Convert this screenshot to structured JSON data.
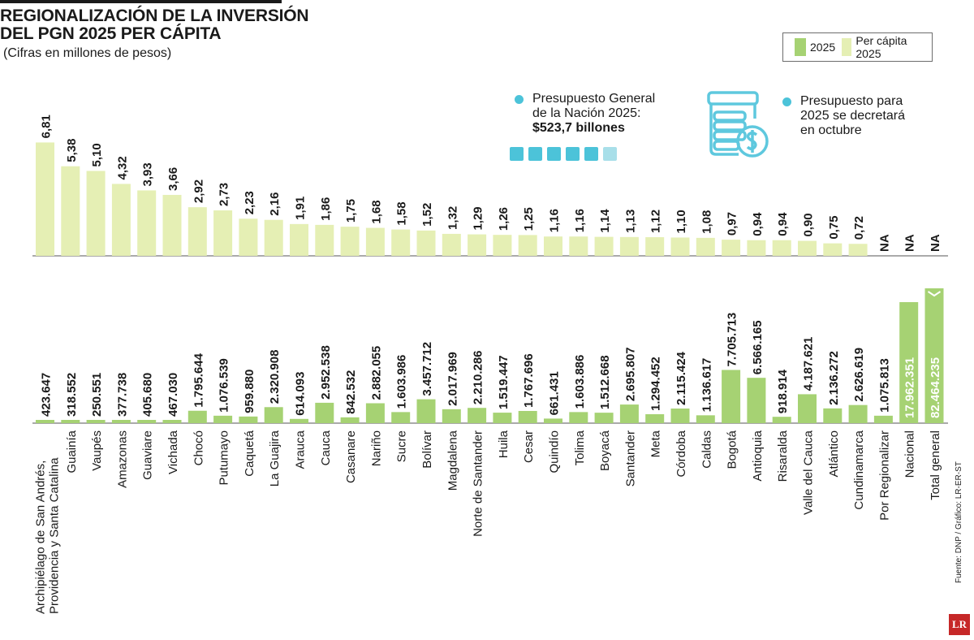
{
  "header": {
    "title_line1": "REGIONALIZACIÓN DE LA INVERSIÓN",
    "title_line2": "DEL PGN 2025 PER CÁPITA",
    "subtitle": "(Cifras en millones de pesos)"
  },
  "legend": {
    "series1": "2025",
    "series2": "Per cápita 2025"
  },
  "info": {
    "left_line1": "Presupuesto General",
    "left_line2": "de la Nación 2025:",
    "left_value": "$523,7 billones",
    "right_line1": "Presupuesto para",
    "right_line2": "2025 se decretará",
    "right_line3": "en octubre"
  },
  "footer": {
    "source": "Fuente: DNP / Gráfico: LR-ER-ST",
    "logo": "LR"
  },
  "colors": {
    "percapita": "#e5efb4",
    "total": "#a6d273",
    "accent": "#4cc3d9",
    "accent_light": "#a8dfe9"
  },
  "chart_data": {
    "type": "bar",
    "title": "REGIONALIZACIÓN DE LA INVERSIÓN DEL PGN 2025 PER CÁPITA",
    "unit": "Cifras en millones de pesos",
    "categories": [
      "Archipiélago de San Andrés, Providencia y Santa Catalina",
      "Guainía",
      "Vaupés",
      "Amazonas",
      "Guaviare",
      "Vichada",
      "Chocó",
      "Putumayo",
      "Caquetá",
      "La Guajira",
      "Arauca",
      "Cauca",
      "Casanare",
      "Nariño",
      "Sucre",
      "Bolívar",
      "Magdalena",
      "Norte de Santander",
      "Huila",
      "Cesar",
      "Quindío",
      "Tolima",
      "Boyacá",
      "Santander",
      "Meta",
      "Córdoba",
      "Caldas",
      "Bogotá",
      "Antioquia",
      "Risaralda",
      "Valle del Cauca",
      "Atlántico",
      "Cundinamarca",
      "Por Regionalizar",
      "Nacional",
      "Total general"
    ],
    "series": [
      {
        "name": "Per cápita 2025",
        "values": [
          6.81,
          5.38,
          5.1,
          4.32,
          3.93,
          3.66,
          2.92,
          2.73,
          2.23,
          2.16,
          1.91,
          1.86,
          1.75,
          1.68,
          1.58,
          1.52,
          1.32,
          1.29,
          1.26,
          1.25,
          1.16,
          1.16,
          1.14,
          1.13,
          1.12,
          1.1,
          1.08,
          0.97,
          0.94,
          0.94,
          0.9,
          0.75,
          0.72,
          null,
          null,
          null
        ],
        "labels": [
          "6,81",
          "5,38",
          "5,10",
          "4,32",
          "3,93",
          "3,66",
          "2,92",
          "2,73",
          "2,23",
          "2,16",
          "1,91",
          "1,86",
          "1,75",
          "1,68",
          "1,58",
          "1,52",
          "1,32",
          "1,29",
          "1,26",
          "1,25",
          "1,16",
          "1,16",
          "1,14",
          "1,13",
          "1,12",
          "1,10",
          "1,08",
          "0,97",
          "0,94",
          "0,94",
          "0,90",
          "0,75",
          "0,72",
          "NA",
          "NA",
          "NA"
        ]
      },
      {
        "name": "2025",
        "values": [
          423647,
          318552,
          250551,
          377738,
          405680,
          467030,
          1795644,
          1076539,
          959880,
          2320908,
          614093,
          2952538,
          842532,
          2882055,
          1603986,
          3457712,
          2017969,
          2210286,
          1519447,
          1767696,
          661431,
          1603886,
          1512668,
          2695807,
          1294452,
          2115424,
          1136617,
          7705713,
          6566165,
          918914,
          4187621,
          2136272,
          2626619,
          1075813,
          17962351,
          82464235
        ],
        "labels": [
          "423.647",
          "318.552",
          "250.551",
          "377.738",
          "405.680",
          "467.030",
          "1.795.644",
          "1.076.539",
          "959.880",
          "2.320.908",
          "614.093",
          "2.952.538",
          "842.532",
          "2.882.055",
          "1.603.986",
          "3.457.712",
          "2.017.969",
          "2.210.286",
          "1.519.447",
          "1.767.696",
          "661.431",
          "1.603.886",
          "1.512.668",
          "2.695.807",
          "1.294.452",
          "2.115.424",
          "1.136.617",
          "7.705.713",
          "6.566.165",
          "918.914",
          "4.187.621",
          "2.136.272",
          "2.626.619",
          "1.075.813",
          "17.962.351",
          "82.464.235"
        ]
      }
    ],
    "axis_break_on": [
      "Nacional",
      "Total general"
    ]
  }
}
